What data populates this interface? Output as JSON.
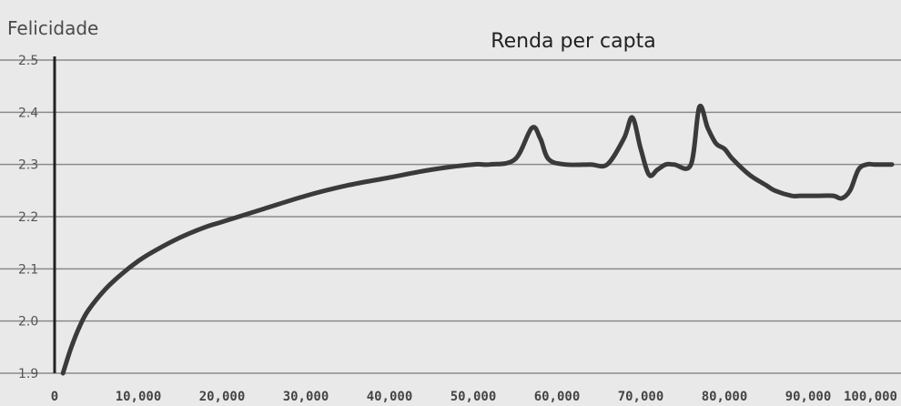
{
  "chart_data": {
    "type": "line",
    "title": "Renda per capta",
    "ylabel": "Felicidade",
    "xlabel": "",
    "xlim": [
      0,
      100000
    ],
    "ylim": [
      1.9,
      2.5
    ],
    "grid": true,
    "yticks": [
      "1.9",
      "2.0",
      "2.1",
      "2.2",
      "2.3",
      "2.4",
      "2.5"
    ],
    "xticks": [
      "0",
      "10,000",
      "20,000",
      "30,000",
      "40,000",
      "50,000",
      "60,000",
      "70,000",
      "80,000",
      "90,000",
      "100,000"
    ],
    "series": [
      {
        "x": [
          1000,
          2000,
          3000,
          4000,
          6000,
          8000,
          10000,
          12000,
          15000,
          18000,
          20000,
          25000,
          30000,
          35000,
          40000,
          45000,
          50000,
          52000,
          55000,
          57000,
          58000,
          59000,
          61000,
          64000,
          66000,
          68000,
          69000,
          70000,
          71000,
          72000,
          73000,
          74000,
          76000,
          77000,
          78000,
          79000,
          80000,
          81000,
          83000,
          85000,
          86000,
          88000,
          89000,
          91000,
          93000,
          94000,
          95000,
          96000,
          97000,
          98000,
          100000
        ],
        "values": [
          1.9,
          1.95,
          1.99,
          2.02,
          2.06,
          2.09,
          2.115,
          2.135,
          2.16,
          2.18,
          2.19,
          2.215,
          2.24,
          2.26,
          2.275,
          2.29,
          2.3,
          2.3,
          2.31,
          2.37,
          2.35,
          2.31,
          2.3,
          2.3,
          2.3,
          2.35,
          2.39,
          2.33,
          2.28,
          2.29,
          2.3,
          2.3,
          2.3,
          2.41,
          2.37,
          2.34,
          2.33,
          2.31,
          2.28,
          2.26,
          2.25,
          2.24,
          2.24,
          2.24,
          2.24,
          2.235,
          2.25,
          2.29,
          2.3,
          2.3,
          2.3
        ]
      }
    ]
  }
}
